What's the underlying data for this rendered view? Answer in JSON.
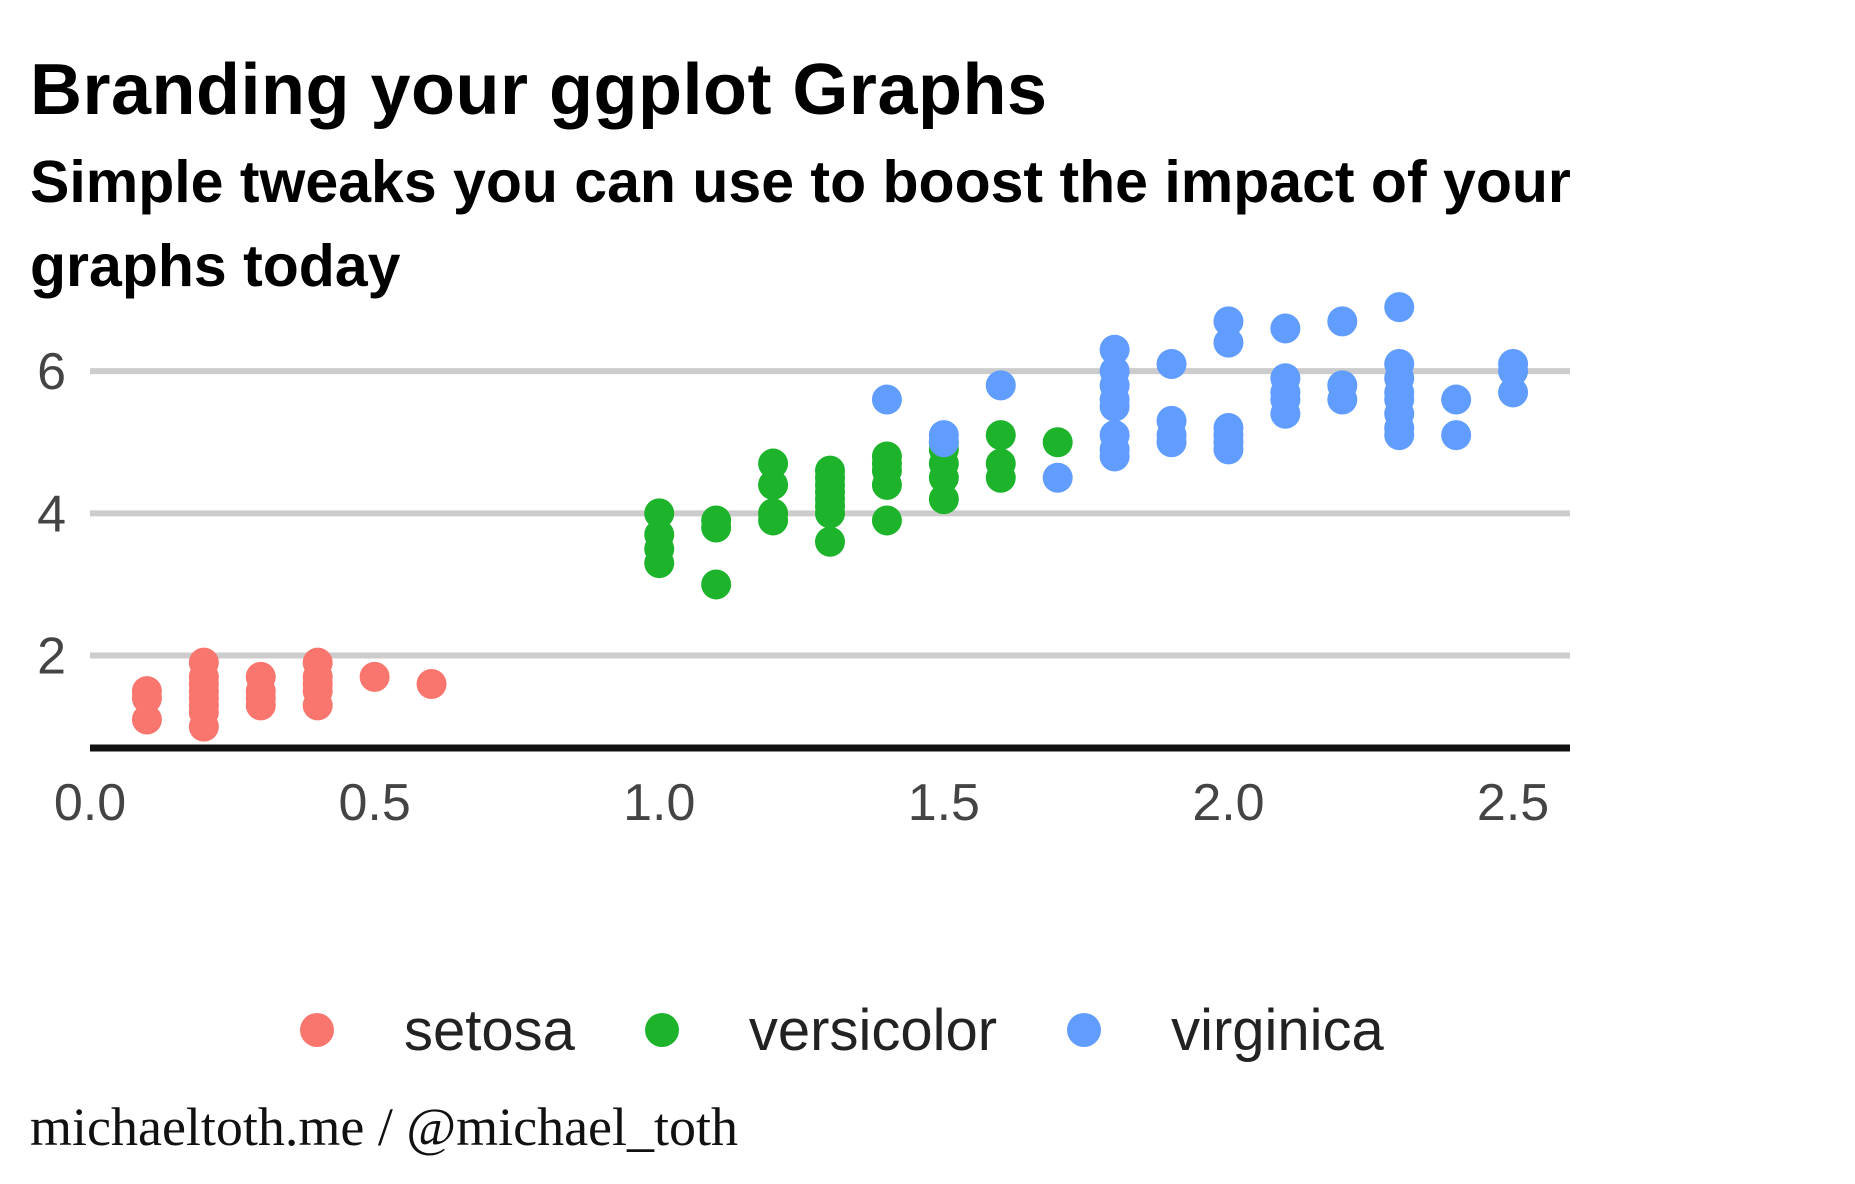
{
  "chart_data": {
    "type": "scatter",
    "title": "Branding your ggplot Graphs",
    "subtitle": "Simple tweaks you can use to boost the impact of your graphs today",
    "caption": "michaeltoth.me / @michael_toth",
    "xlabel": "",
    "ylabel": "",
    "xlim": [
      0.0,
      2.6
    ],
    "ylim": [
      0.7,
      7.0
    ],
    "x_ticks": [
      "0.0",
      "0.5",
      "1.0",
      "1.5",
      "2.0",
      "2.5"
    ],
    "y_ticks": [
      "2",
      "4",
      "6"
    ],
    "grid": "horizontal major",
    "legend_position": "bottom",
    "series": [
      {
        "name": "setosa",
        "color": "#F8766D",
        "points": [
          [
            0.1,
            1.1
          ],
          [
            0.1,
            1.4
          ],
          [
            0.1,
            1.5
          ],
          [
            0.2,
            1.0
          ],
          [
            0.2,
            1.2
          ],
          [
            0.2,
            1.3
          ],
          [
            0.2,
            1.4
          ],
          [
            0.2,
            1.5
          ],
          [
            0.2,
            1.6
          ],
          [
            0.2,
            1.7
          ],
          [
            0.2,
            1.9
          ],
          [
            0.3,
            1.3
          ],
          [
            0.3,
            1.4
          ],
          [
            0.3,
            1.5
          ],
          [
            0.3,
            1.7
          ],
          [
            0.4,
            1.3
          ],
          [
            0.4,
            1.5
          ],
          [
            0.4,
            1.6
          ],
          [
            0.4,
            1.7
          ],
          [
            0.4,
            1.9
          ],
          [
            0.5,
            1.7
          ],
          [
            0.6,
            1.6
          ]
        ]
      },
      {
        "name": "versicolor",
        "color": "#1DB32B",
        "points": [
          [
            1.0,
            3.3
          ],
          [
            1.0,
            3.5
          ],
          [
            1.0,
            3.7
          ],
          [
            1.0,
            4.0
          ],
          [
            1.1,
            3.0
          ],
          [
            1.1,
            3.8
          ],
          [
            1.1,
            3.9
          ],
          [
            1.2,
            3.9
          ],
          [
            1.2,
            4.0
          ],
          [
            1.2,
            4.4
          ],
          [
            1.2,
            4.7
          ],
          [
            1.3,
            3.6
          ],
          [
            1.3,
            4.0
          ],
          [
            1.3,
            4.1
          ],
          [
            1.3,
            4.2
          ],
          [
            1.3,
            4.3
          ],
          [
            1.3,
            4.4
          ],
          [
            1.3,
            4.5
          ],
          [
            1.3,
            4.6
          ],
          [
            1.4,
            3.9
          ],
          [
            1.4,
            4.4
          ],
          [
            1.4,
            4.6
          ],
          [
            1.4,
            4.7
          ],
          [
            1.4,
            4.8
          ],
          [
            1.5,
            4.2
          ],
          [
            1.5,
            4.5
          ],
          [
            1.5,
            4.7
          ],
          [
            1.5,
            4.9
          ],
          [
            1.5,
            5.0
          ],
          [
            1.6,
            4.5
          ],
          [
            1.6,
            4.7
          ],
          [
            1.6,
            5.1
          ],
          [
            1.7,
            5.0
          ]
        ]
      },
      {
        "name": "virginica",
        "color": "#619CFF",
        "points": [
          [
            1.4,
            5.6
          ],
          [
            1.5,
            5.0
          ],
          [
            1.5,
            5.1
          ],
          [
            1.6,
            5.8
          ],
          [
            1.7,
            4.5
          ],
          [
            1.8,
            4.8
          ],
          [
            1.8,
            4.9
          ],
          [
            1.8,
            5.1
          ],
          [
            1.8,
            5.5
          ],
          [
            1.8,
            5.6
          ],
          [
            1.8,
            5.8
          ],
          [
            1.8,
            6.0
          ],
          [
            1.8,
            6.3
          ],
          [
            1.9,
            5.0
          ],
          [
            1.9,
            5.1
          ],
          [
            1.9,
            5.3
          ],
          [
            1.9,
            6.1
          ],
          [
            2.0,
            4.9
          ],
          [
            2.0,
            5.0
          ],
          [
            2.0,
            5.1
          ],
          [
            2.0,
            5.2
          ],
          [
            2.0,
            6.4
          ],
          [
            2.0,
            6.7
          ],
          [
            2.1,
            5.4
          ],
          [
            2.1,
            5.6
          ],
          [
            2.1,
            5.7
          ],
          [
            2.1,
            5.9
          ],
          [
            2.1,
            6.6
          ],
          [
            2.2,
            5.6
          ],
          [
            2.2,
            5.8
          ],
          [
            2.2,
            6.7
          ],
          [
            2.3,
            5.1
          ],
          [
            2.3,
            5.2
          ],
          [
            2.3,
            5.4
          ],
          [
            2.3,
            5.6
          ],
          [
            2.3,
            5.7
          ],
          [
            2.3,
            5.9
          ],
          [
            2.3,
            6.1
          ],
          [
            2.3,
            6.9
          ],
          [
            2.4,
            5.1
          ],
          [
            2.4,
            5.6
          ],
          [
            2.5,
            5.7
          ],
          [
            2.5,
            6.0
          ],
          [
            2.5,
            6.1
          ]
        ]
      }
    ]
  }
}
